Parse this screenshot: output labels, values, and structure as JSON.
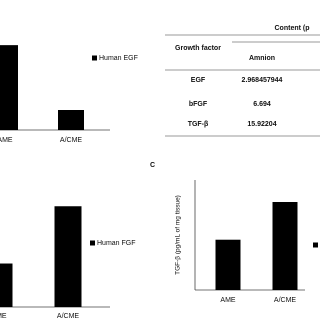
{
  "chart_data": [
    {
      "type": "bar",
      "categories": [
        "AME",
        "A/CME"
      ],
      "series": [
        {
          "name": "Human EGF",
          "color": "#000000",
          "values": [
            2.97,
            0.7
          ]
        }
      ],
      "ylim": [
        0,
        3.5
      ]
    },
    {
      "type": "bar",
      "categories": [
        "AME",
        "A/CME"
      ],
      "series": [
        {
          "name": "Human FGF",
          "color": "#000000",
          "values": [
            6.69,
            15.5
          ]
        }
      ],
      "ylim": [
        0,
        18
      ]
    },
    {
      "type": "bar",
      "panel_label": "C",
      "ylabel": "TGF-β (pg/mL of mg tissue)",
      "categories": [
        "AME",
        "A/CME"
      ],
      "series": [
        {
          "color": "#000000",
          "values": [
            16,
            28
          ]
        }
      ],
      "ylim": [
        0,
        35
      ]
    }
  ],
  "table": {
    "group_header": "Content (p",
    "columns": [
      "Growth factor",
      "Amnion"
    ],
    "rows": [
      [
        "EGF",
        "2.968457944"
      ],
      [
        "bFGF",
        "6.694"
      ],
      [
        "TGF-β",
        "15.92204"
      ]
    ]
  }
}
